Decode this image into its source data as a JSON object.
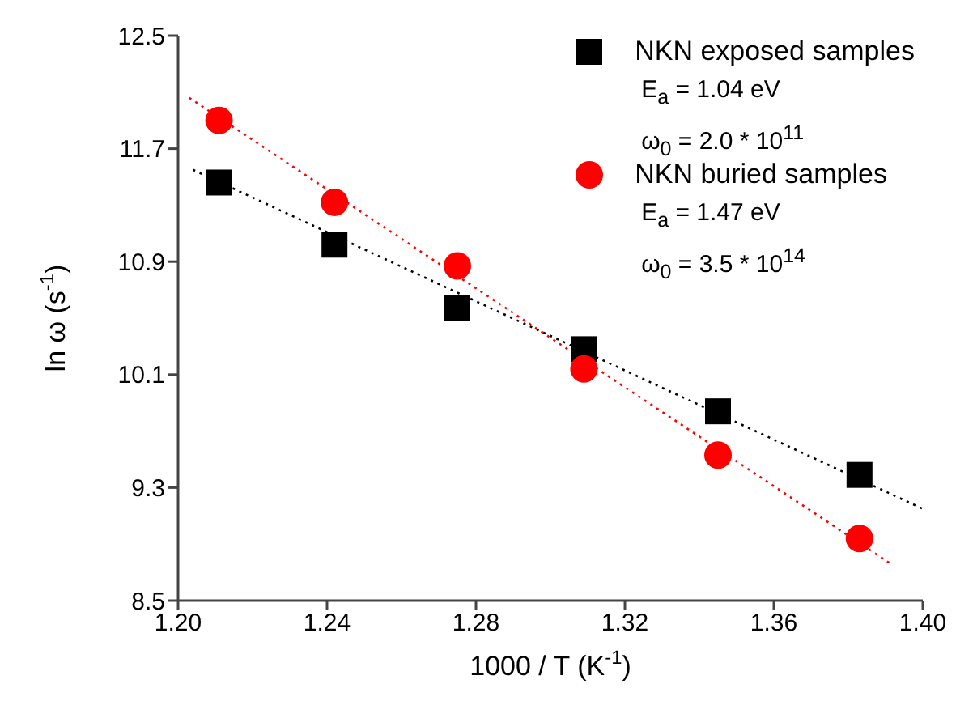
{
  "chart_data": {
    "type": "scatter",
    "xlabel": "1000 / T (K$^{-1}$)",
    "ylabel": "ln ω (s$^{-1}$)",
    "xlim": [
      1.2,
      1.4
    ],
    "xticks": [
      {
        "value": 1.2,
        "label": "1.20"
      },
      {
        "value": 1.24,
        "label": "1.24"
      },
      {
        "value": 1.28,
        "label": "1.28"
      },
      {
        "value": 1.32,
        "label": "1.32"
      },
      {
        "value": 1.36,
        "label": "1.36"
      },
      {
        "value": 1.4,
        "label": "1.40"
      }
    ],
    "ylim": [
      8.5,
      12.5
    ],
    "yticks": [
      8.5,
      9.3,
      10.1,
      10.9,
      11.7,
      12.5
    ],
    "grid": false,
    "legend": "top right",
    "annotations": [
      "E$_{a}$ = 1.04 eV",
      "ω$_{0}$ = 2.0 * 10$^{11}$",
      "E$_{a}$ = 1.47 eV",
      "ω$_{0}$ = 3.5 * 10$^{14}$"
    ],
    "series": [
      {
        "name": "NKN exposed samples",
        "marker": "square",
        "color": "#000000",
        "x": [
          1.211,
          1.242,
          1.275,
          1.309,
          1.345,
          1.383
        ],
        "values": [
          11.46,
          11.02,
          10.57,
          10.28,
          9.84,
          9.39
        ]
      },
      {
        "name": "NKN buried samples",
        "marker": "circle",
        "color": "#ff0000",
        "x": [
          1.211,
          1.242,
          1.275,
          1.309,
          1.345,
          1.383
        ],
        "values": [
          11.9,
          11.32,
          10.87,
          10.14,
          9.53,
          8.94
        ]
      },
      {
        "type": "line",
        "line_style": "dotted",
        "marker": "none",
        "color": "#000000",
        "x": [
          1.204,
          1.4
        ],
        "values": [
          11.55,
          9.15
        ]
      },
      {
        "type": "line",
        "line_style": "dotted",
        "marker": "none",
        "color": "#ff0000",
        "x": [
          1.203,
          1.392
        ],
        "values": [
          12.06,
          8.75
        ]
      }
    ]
  }
}
